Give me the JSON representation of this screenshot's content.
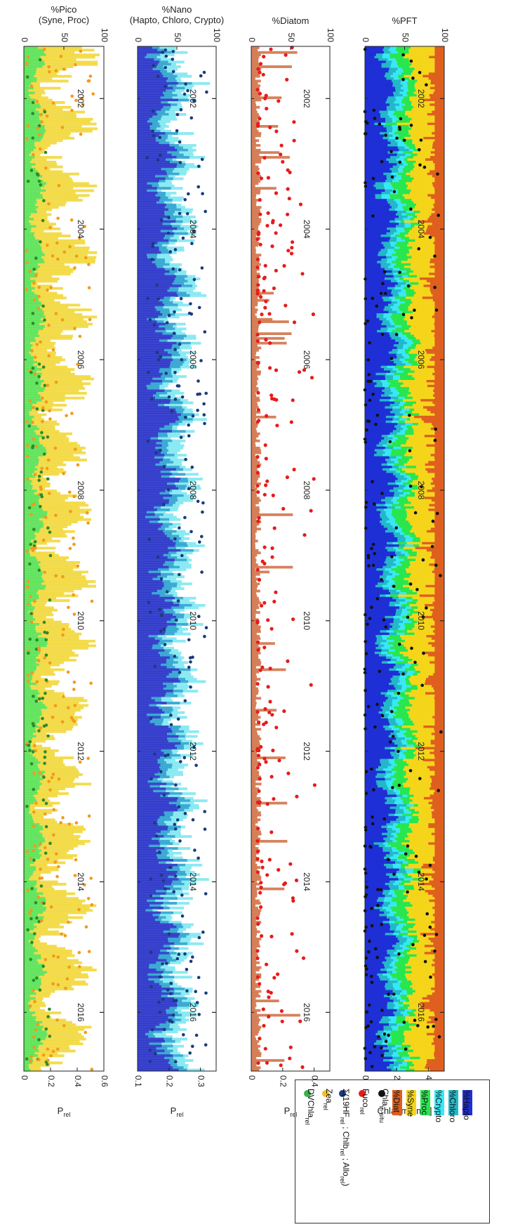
{
  "panels": [
    {
      "id": "pft",
      "title_lines": [
        "%PFT"
      ],
      "ylabel": "Chla [mg m",
      "ylabel_sup": "-3",
      "ylabel_tail": "]",
      "pct_ticks": [
        "0",
        "50",
        "100"
      ],
      "val_ticks": [
        "0",
        "2",
        "4"
      ],
      "val_range": [
        0,
        5
      ]
    },
    {
      "id": "diatom",
      "title_lines": [
        "%Diatom"
      ],
      "ylabel": "P",
      "ylabel_sub": "rel",
      "pct_ticks": [
        "0",
        "50",
        "100"
      ],
      "val_ticks": [
        "0",
        "0.2",
        "0.4"
      ],
      "val_range": [
        0,
        0.5
      ]
    },
    {
      "id": "nano",
      "title_lines": [
        "%Nano",
        "(Hapto, Chloro, Crypto)"
      ],
      "ylabel": "P",
      "ylabel_sub": "rel",
      "pct_ticks": [
        "0",
        "50",
        "100"
      ],
      "val_ticks": [
        "0.1",
        "0.2",
        "0.3"
      ],
      "val_range": [
        0.1,
        0.35
      ]
    },
    {
      "id": "pico",
      "title_lines": [
        "%Pico",
        "(Syne, Proc)"
      ],
      "ylabel": "P",
      "ylabel_sub": "rel",
      "pct_ticks": [
        "0",
        "50",
        "100"
      ],
      "val_ticks": [
        "0",
        "0.2",
        "0.4",
        "0.6"
      ],
      "val_range": [
        0,
        0.6
      ]
    }
  ],
  "time_ticks": [
    "2002",
    "2004",
    "2006",
    "2008",
    "2010",
    "2012",
    "2014",
    "2016"
  ],
  "time_range": [
    2001.2,
    2016.9
  ],
  "legend": {
    "swatches": [
      {
        "label": "%Hapto",
        "color": "#1f2fd6"
      },
      {
        "label": "%Chloro",
        "color": "#22b8c9"
      },
      {
        "label": "%Crypto",
        "color": "#38e8f6"
      },
      {
        "label": "%Proc",
        "color": "#28e64e"
      },
      {
        "label": "%Syne",
        "color": "#f5d51a"
      },
      {
        "label": "%Diat",
        "color": "#df5f1f"
      }
    ],
    "markers": [
      {
        "label": "Chla",
        "sub": "in-situ",
        "color": "#111111"
      },
      {
        "label": "Fuco",
        "sub": "rel",
        "color": "#e81b1b"
      },
      {
        "label": "Σ(19HF",
        "sub": "rel",
        "tail": " ; Chlb",
        "tail_sub": "rel",
        "tail2": " ; Allo",
        "tail2_sub": "rel",
        "tail3": ")",
        "color": "#1a3b7a"
      },
      {
        "label": "Zea",
        "sub": "rel",
        "color": "#f4c020"
      },
      {
        "label": "DVChla",
        "sub": "rel",
        "color": "#36b34a"
      }
    ]
  },
  "chart_data": [
    {
      "type": "area",
      "title": "%PFT",
      "ylabel": "Chla [mg m-3]",
      "x_range": [
        2001.2,
        2016.9
      ],
      "y_range_pct": [
        0,
        100
      ],
      "y_range_value": [
        0,
        5
      ],
      "stack_order_bottom_to_top": [
        "%Hapto",
        "%Chloro",
        "%Crypto",
        "%Proc",
        "%Syne",
        "%Diat"
      ],
      "seasonal_mean_pct": {
        "%Hapto": 28,
        "%Chloro": 10,
        "%Crypto": 8,
        "%Proc": 12,
        "%Syne": 22,
        "%Diat": 20
      },
      "points": {
        "series": "Chla in-situ",
        "typical_range": [
          0,
          4.8
        ]
      }
    },
    {
      "type": "area",
      "title": "%Diatom",
      "ylabel": "Prel",
      "x_range": [
        2001.2,
        2016.9
      ],
      "y_range_pct": [
        0,
        100
      ],
      "y_range_value": [
        0,
        0.5
      ],
      "series": [
        "%Diat"
      ],
      "points": {
        "series": "Fuco rel",
        "typical_range": [
          0.03,
          0.45
        ]
      }
    },
    {
      "type": "area",
      "title": "%Nano (Hapto, Chloro, Crypto)",
      "ylabel": "Prel",
      "x_range": [
        2001.2,
        2016.9
      ],
      "y_range_pct": [
        0,
        100
      ],
      "y_range_value": [
        0.1,
        0.35
      ],
      "series": [
        "%Hapto",
        "%Chloro",
        "%Crypto"
      ],
      "points": {
        "series": "Σ(19HF rel ; Chlb rel ; Allo rel)",
        "typical_range": [
          0.12,
          0.33
        ]
      }
    },
    {
      "type": "area",
      "title": "%Pico (Syne, Proc)",
      "ylabel": "Prel",
      "x_range": [
        2001.2,
        2016.9
      ],
      "y_range_pct": [
        0,
        100
      ],
      "y_range_value": [
        0,
        0.6
      ],
      "series": [
        "%Proc",
        "%Syne"
      ],
      "points": [
        {
          "series": "Zea rel",
          "typical_range": [
            0,
            0.55
          ]
        },
        {
          "series": "DVChla rel",
          "typical_range": [
            0,
            0.25
          ]
        }
      ]
    }
  ]
}
